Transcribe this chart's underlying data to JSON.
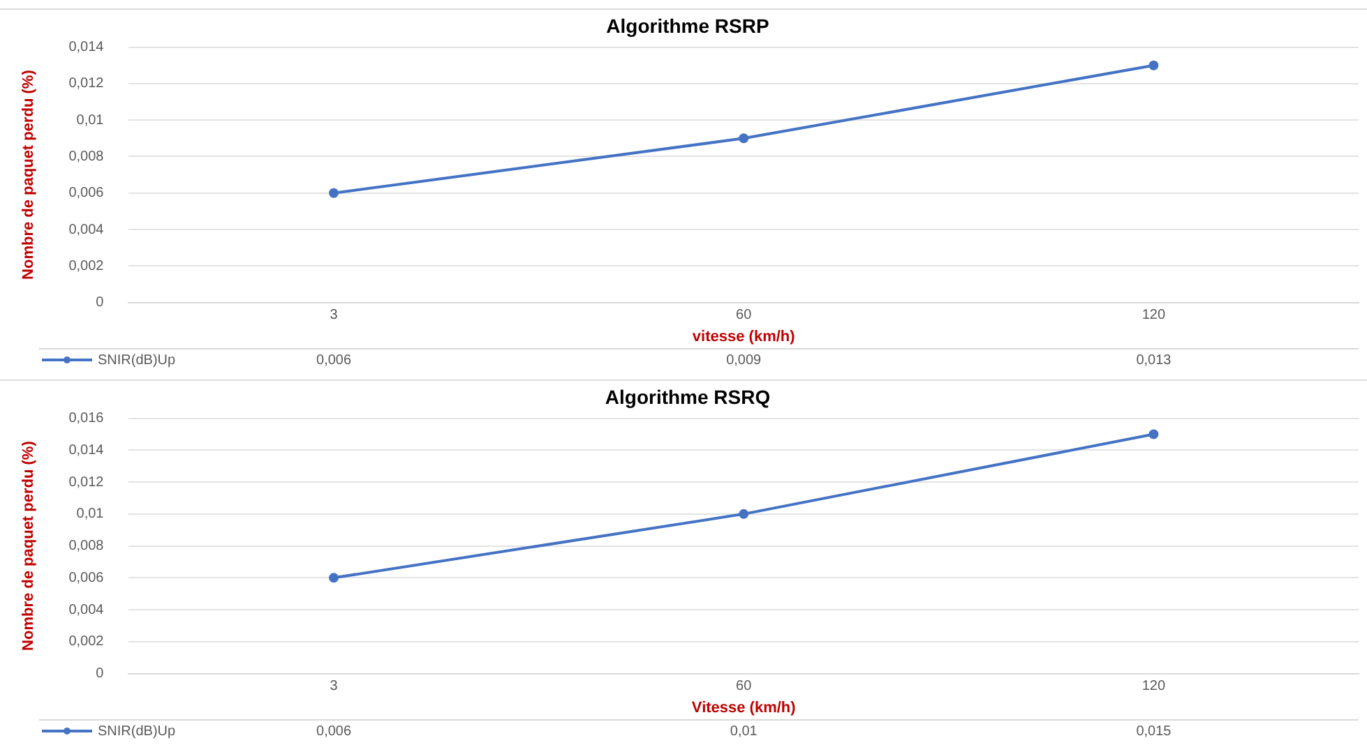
{
  "chart_data": [
    {
      "type": "line",
      "title": "Algorithme RSRP",
      "xlabel": "vitesse (km/h)",
      "ylabel": "Nombre de paquet perdu (%)",
      "categories": [
        "3",
        "60",
        "120"
      ],
      "series": [
        {
          "name": "SNIR(dB)Up",
          "color": "#4472c4",
          "values": [
            0.006,
            0.009,
            0.013
          ],
          "value_labels": [
            "0,006",
            "0,009",
            "0,013"
          ]
        }
      ],
      "ylim": [
        0,
        0.014
      ],
      "yticks": [
        0,
        {
          "value": 0.002,
          "label": "0,002"
        },
        {
          "value": 0.004,
          "label": "0,004"
        },
        {
          "value": 0.006,
          "label": "0,006"
        },
        {
          "value": 0.008,
          "label": "0,008"
        },
        {
          "value": 0.01,
          "label": "0,01"
        },
        {
          "value": 0.012,
          "label": "0,012"
        },
        {
          "value": 0.014,
          "label": "0,014"
        }
      ],
      "grid": "y",
      "legend": "bottom left",
      "marker": "circle",
      "line_style": "solid"
    },
    {
      "type": "line",
      "title": "Algorithme RSRQ",
      "xlabel": "Vitesse (km/h)",
      "ylabel": "Nombre de paquet perdu (%)",
      "categories": [
        "3",
        "60",
        "120"
      ],
      "series": [
        {
          "name": "SNIR(dB)Up",
          "color": "#4472c4",
          "values": [
            0.006,
            0.01,
            0.015
          ],
          "value_labels": [
            "0,006",
            "0,01",
            "0,015"
          ]
        }
      ],
      "ylim": [
        0,
        0.016
      ],
      "yticks": [
        0,
        {
          "value": 0.002,
          "label": "0,002"
        },
        {
          "value": 0.004,
          "label": "0,004"
        },
        {
          "value": 0.006,
          "label": "0,006"
        },
        {
          "value": 0.008,
          "label": "0,008"
        },
        {
          "value": 0.01,
          "label": "0,01"
        },
        {
          "value": 0.012,
          "label": "0,012"
        },
        {
          "value": 0.014,
          "label": "0,014"
        },
        {
          "value": 0.016,
          "label": "0,016"
        }
      ],
      "grid": "y",
      "legend": "bottom left",
      "marker": "circle",
      "line_style": "solid"
    }
  ]
}
